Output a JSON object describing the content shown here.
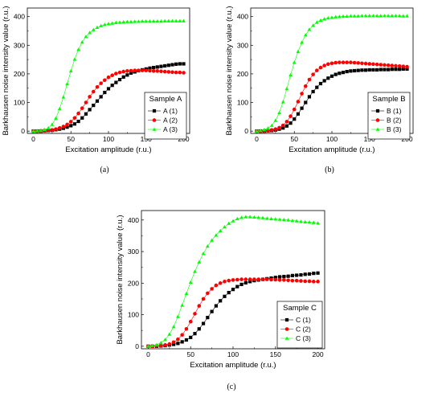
{
  "chart_data": [
    {
      "type": "line",
      "panel_label": "(a)",
      "legend_title": "Sample A",
      "xlabel": "Excitation amplitude (r.u.)",
      "ylabel": "Barkhausen noise intensity value (r.u.)",
      "xlim": [
        -8,
        208
      ],
      "ylim": [
        -8,
        430
      ],
      "xticks": [
        "0",
        "50",
        "100",
        "150",
        "200"
      ],
      "yticks": [
        "0",
        "100",
        "200",
        "300",
        "400"
      ],
      "legend_position": "right",
      "x": [
        0,
        5,
        10,
        15,
        20,
        25,
        30,
        35,
        40,
        45,
        50,
        55,
        60,
        65,
        70,
        75,
        80,
        85,
        90,
        95,
        100,
        105,
        110,
        115,
        120,
        125,
        130,
        135,
        140,
        145,
        150,
        155,
        160,
        165,
        170,
        175,
        180,
        185,
        190,
        195,
        200
      ],
      "series": [
        {
          "name": "A (1)",
          "marker": "square",
          "color": "#000000",
          "values": [
            0,
            0,
            0,
            1,
            2,
            3,
            5,
            7,
            10,
            14,
            19,
            25,
            34,
            46,
            60,
            75,
            90,
            105,
            120,
            135,
            148,
            160,
            170,
            180,
            189,
            196,
            203,
            207,
            211,
            214,
            217,
            220,
            222,
            224,
            226,
            228,
            230,
            232,
            234,
            235,
            235
          ]
        },
        {
          "name": "A (2)",
          "marker": "circle",
          "color": "#ff0000",
          "values": [
            0,
            0,
            1,
            2,
            3,
            4,
            7,
            11,
            16,
            23,
            33,
            46,
            62,
            80,
            100,
            120,
            138,
            154,
            167,
            178,
            188,
            195,
            201,
            205,
            208,
            210,
            211,
            212,
            212,
            212,
            212,
            211,
            210,
            210,
            209,
            208,
            207,
            206,
            205,
            205,
            204
          ]
        },
        {
          "name": "A (3)",
          "marker": "triangle",
          "color": "#00ff00",
          "values": [
            0,
            1,
            2,
            5,
            11,
            23,
            45,
            78,
            119,
            165,
            210,
            251,
            285,
            311,
            330,
            344,
            354,
            362,
            368,
            372,
            375,
            377,
            379,
            380,
            381,
            382,
            382,
            383,
            383,
            384,
            384,
            384,
            384,
            384,
            384,
            385,
            385,
            385,
            385,
            385,
            385
          ]
        }
      ]
    },
    {
      "type": "line",
      "panel_label": "(b)",
      "legend_title": "Sample B",
      "xlabel": "Excitation amplitude (r.u.)",
      "ylabel": "Barkhausen noise intensity value (r.u.)",
      "xlim": [
        -8,
        208
      ],
      "ylim": [
        -8,
        430
      ],
      "xticks": [
        "0",
        "50",
        "100",
        "150",
        "200"
      ],
      "yticks": [
        "0",
        "100",
        "200",
        "300",
        "400"
      ],
      "legend_position": "right",
      "x": [
        0,
        5,
        10,
        15,
        20,
        25,
        30,
        35,
        40,
        45,
        50,
        55,
        60,
        65,
        70,
        75,
        80,
        85,
        90,
        95,
        100,
        105,
        110,
        115,
        120,
        125,
        130,
        135,
        140,
        145,
        150,
        155,
        160,
        165,
        170,
        175,
        180,
        185,
        190,
        195,
        200
      ],
      "series": [
        {
          "name": "B (1)",
          "marker": "square",
          "color": "#000000",
          "values": [
            0,
            0,
            0,
            1,
            2,
            4,
            7,
            11,
            18,
            28,
            42,
            60,
            80,
            100,
            120,
            138,
            153,
            166,
            176,
            185,
            192,
            198,
            202,
            205,
            208,
            210,
            211,
            212,
            213,
            213,
            214,
            214,
            214,
            215,
            215,
            215,
            216,
            216,
            216,
            217,
            217
          ]
        },
        {
          "name": "B (2)",
          "marker": "circle",
          "color": "#ff0000",
          "values": [
            0,
            0,
            1,
            2,
            4,
            7,
            12,
            20,
            33,
            52,
            76,
            103,
            131,
            157,
            180,
            198,
            212,
            222,
            229,
            234,
            237,
            239,
            240,
            240,
            240,
            240,
            239,
            238,
            237,
            236,
            235,
            234,
            233,
            232,
            231,
            230,
            229,
            228,
            227,
            226,
            225
          ]
        },
        {
          "name": "B (3)",
          "marker": "triangle",
          "color": "#00ff00",
          "values": [
            0,
            2,
            5,
            10,
            20,
            37,
            64,
            102,
            148,
            196,
            240,
            278,
            310,
            336,
            355,
            369,
            380,
            387,
            392,
            395,
            397,
            399,
            400,
            401,
            401,
            402,
            402,
            402,
            403,
            403,
            403,
            403,
            403,
            403,
            403,
            403,
            403,
            403,
            403,
            402,
            402
          ]
        }
      ]
    },
    {
      "type": "line",
      "panel_label": "(c)",
      "legend_title": "Sample C",
      "xlabel": "Excitation amplitude (r.u.)",
      "ylabel": "Barkhausen noise intensity value (r.u.)",
      "xlim": [
        -8,
        208
      ],
      "ylim": [
        -8,
        430
      ],
      "xticks": [
        "0",
        "50",
        "100",
        "150",
        "200"
      ],
      "yticks": [
        "0",
        "100",
        "200",
        "300",
        "400"
      ],
      "legend_position": "right",
      "x": [
        0,
        5,
        10,
        15,
        20,
        25,
        30,
        35,
        40,
        45,
        50,
        55,
        60,
        65,
        70,
        75,
        80,
        85,
        90,
        95,
        100,
        105,
        110,
        115,
        120,
        125,
        130,
        135,
        140,
        145,
        150,
        155,
        160,
        165,
        170,
        175,
        180,
        185,
        190,
        195,
        200
      ],
      "series": [
        {
          "name": "C (1)",
          "marker": "square",
          "color": "#000000",
          "values": [
            0,
            0,
            0,
            1,
            2,
            4,
            6,
            9,
            14,
            20,
            28,
            40,
            55,
            72,
            91,
            110,
            128,
            144,
            158,
            170,
            180,
            189,
            196,
            201,
            205,
            208,
            210,
            212,
            214,
            216,
            218,
            220,
            221,
            222,
            224,
            225,
            226,
            228,
            229,
            231,
            232
          ]
        },
        {
          "name": "C (2)",
          "marker": "circle",
          "color": "#ff0000",
          "values": [
            0,
            0,
            1,
            2,
            4,
            7,
            13,
            22,
            36,
            55,
            78,
            103,
            128,
            150,
            168,
            182,
            193,
            200,
            205,
            208,
            210,
            211,
            212,
            212,
            212,
            212,
            212,
            212,
            212,
            211,
            211,
            210,
            210,
            209,
            208,
            208,
            207,
            206,
            206,
            205,
            205
          ]
        },
        {
          "name": "C (3)",
          "marker": "triangle",
          "color": "#00ff00",
          "values": [
            0,
            2,
            5,
            11,
            21,
            38,
            62,
            94,
            130,
            167,
            203,
            237,
            267,
            294,
            317,
            336,
            352,
            366,
            378,
            389,
            397,
            404,
            408,
            410,
            410,
            409,
            408,
            407,
            405,
            404,
            403,
            402,
            401,
            400,
            398,
            397,
            395,
            394,
            393,
            392,
            390
          ]
        }
      ]
    }
  ]
}
